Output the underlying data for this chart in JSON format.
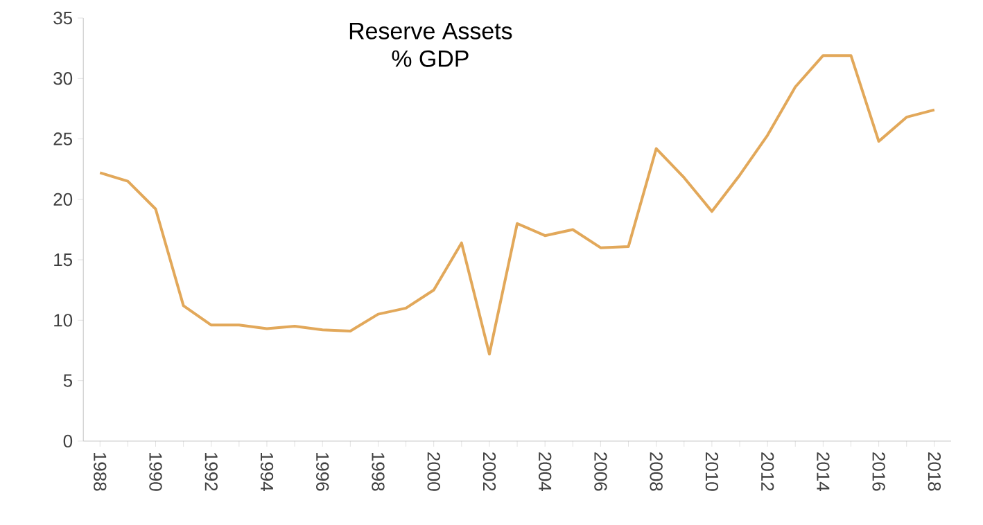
{
  "chart_data": {
    "type": "line",
    "title": "Reserve Assets",
    "subtitle": "% GDP",
    "categories": [
      "1988",
      null,
      "1990",
      null,
      "1992",
      null,
      "1994",
      null,
      "1996",
      null,
      "1998",
      null,
      "2000",
      null,
      "2002",
      null,
      "2004",
      null,
      "2006",
      null,
      "2008",
      null,
      "2010",
      null,
      "2012",
      null,
      "2014",
      null,
      "2016",
      null,
      "2018"
    ],
    "series": [
      {
        "color": "#e2a85a",
        "values": [
          22.2,
          21.5,
          19.2,
          11.2,
          9.6,
          9.6,
          9.3,
          9.5,
          9.2,
          9.1,
          10.5,
          11.0,
          12.5,
          16.4,
          7.2,
          18.0,
          17.0,
          17.5,
          16.0,
          16.1,
          24.2,
          21.8,
          19.0,
          22.0,
          25.3,
          29.3,
          31.9,
          31.9,
          24.8,
          26.8,
          27.4
        ]
      }
    ],
    "ylim": [
      0,
      35
    ],
    "yticks": [
      0,
      5,
      10,
      15,
      20,
      25,
      30,
      35
    ],
    "grid": false,
    "marker": "none",
    "line_style": "solid"
  }
}
